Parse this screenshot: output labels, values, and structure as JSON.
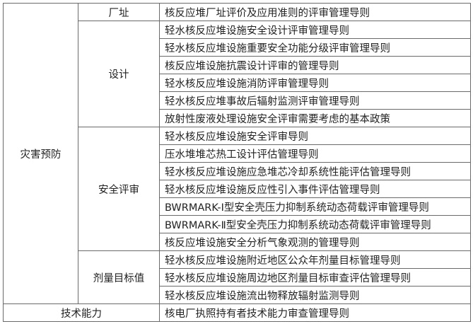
{
  "table": {
    "group_hazard": "灾害预防",
    "group_tech": "技术能力",
    "site": {
      "label": "厂址",
      "items": [
        "核反应堆厂址评价及应用准则的评审管理导则"
      ]
    },
    "design": {
      "label": "设计",
      "items": [
        "轻水核反应堆设施安全设计评审管理导则",
        "轻水核反应堆设施重要安全功能分级评审管理导则",
        "核反应堆设施抗震设计评审的管理导则",
        "轻水核反应堆设施消防评审管理导则",
        "轻水核反应堆事故后辐射监测评审管理导则",
        "放射性废液处理设施安全评审需要考虑的基本政策"
      ]
    },
    "safety": {
      "label": "安全评审",
      "items": [
        "轻水核反应堆设施安全评审导则",
        "压水堆堆芯热工设计评估管理导则",
        "轻水核反应堆设施应急堆芯冷却系统性能评估管理导则",
        "轻水核反应堆设施反应性引入事件评估管理导则",
        "BWRMARK-Ⅰ型安全壳压力抑制系统动态荷载评审管理导则",
        "BWRMARK-Ⅱ型安全壳压力抑制系统动态荷载评审管理导则",
        "核反应堆设施安全分析气象观测的管理导则"
      ]
    },
    "dose": {
      "label": "剂量目标值",
      "items": [
        "轻水核反应堆设施附近地区公众年剂量目标管理导则",
        "轻水核反应堆设施周边地区剂量目标审查评估管理导则",
        "轻水核反应堆设施流出物释放辐射监测导则"
      ]
    },
    "tech": {
      "items": [
        "核电厂执照持有者技术能力审查管理导则"
      ]
    }
  }
}
